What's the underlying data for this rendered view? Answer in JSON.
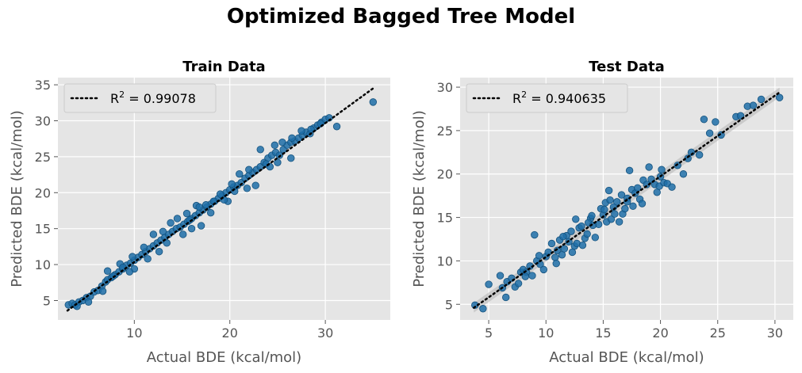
{
  "suptitle": "Optimized Bagged Tree Model",
  "colors": {
    "point": "#1f6fa8",
    "point_edge": "#14527e",
    "background": "#e5e5e5",
    "grid": "#ffffff",
    "fit_line": "#000000",
    "band": "#b0b0b0"
  },
  "chart_data": [
    {
      "type": "scatter",
      "title": "Train Data",
      "xlabel": "Actual BDE (kcal/mol)",
      "ylabel": "Predicted BDE (kcal/mol)",
      "xlim": [
        2.0,
        36.8
      ],
      "ylim": [
        2.3,
        36.0
      ],
      "xticks": [
        10,
        20,
        30
      ],
      "yticks": [
        5,
        10,
        15,
        20,
        25,
        30,
        35
      ],
      "grid": true,
      "legend": {
        "label_prefix": "R",
        "superscript": "2",
        "label_suffix": " = 0.99078",
        "placement": "top-left"
      },
      "fit_line": {
        "x": [
          3.0,
          35.0
        ],
        "y": [
          3.6,
          34.5
        ]
      },
      "scatter_note": "dense cloud along y≈x",
      "points": [
        [
          3.1,
          4.4
        ],
        [
          3.5,
          4.6
        ],
        [
          3.8,
          4.4
        ],
        [
          4.2,
          4.8
        ],
        [
          4.6,
          5.0
        ],
        [
          5.0,
          5.4
        ],
        [
          5.4,
          5.6
        ],
        [
          5.8,
          6.2
        ],
        [
          6.2,
          6.4
        ],
        [
          6.6,
          7.0
        ],
        [
          7.0,
          7.6
        ],
        [
          7.2,
          7.9
        ],
        [
          7.6,
          8.2
        ],
        [
          8.0,
          8.6
        ],
        [
          8.4,
          9.0
        ],
        [
          8.8,
          9.4
        ],
        [
          9.2,
          9.9
        ],
        [
          9.6,
          10.2
        ],
        [
          10.0,
          10.6
        ],
        [
          10.4,
          11.0
        ],
        [
          10.8,
          11.4
        ],
        [
          11.2,
          11.8
        ],
        [
          11.6,
          12.2
        ],
        [
          12.0,
          12.6
        ],
        [
          12.4,
          13.0
        ],
        [
          12.8,
          13.4
        ],
        [
          13.2,
          13.8
        ],
        [
          13.6,
          14.2
        ],
        [
          14.0,
          14.6
        ],
        [
          14.4,
          15.0
        ],
        [
          14.8,
          15.2
        ],
        [
          15.2,
          15.6
        ],
        [
          15.6,
          16.0
        ],
        [
          16.0,
          16.4
        ],
        [
          16.4,
          16.8
        ],
        [
          16.8,
          17.2
        ],
        [
          17.2,
          17.6
        ],
        [
          17.6,
          18.0
        ],
        [
          18.0,
          18.4
        ],
        [
          18.4,
          18.8
        ],
        [
          18.8,
          19.2
        ],
        [
          19.2,
          19.6
        ],
        [
          19.6,
          20.0
        ],
        [
          20.0,
          20.4
        ],
        [
          20.4,
          20.8
        ],
        [
          20.8,
          21.0
        ],
        [
          21.2,
          21.4
        ],
        [
          21.6,
          22.0
        ],
        [
          22.0,
          22.4
        ],
        [
          22.4,
          22.8
        ],
        [
          22.8,
          23.2
        ],
        [
          23.2,
          23.6
        ],
        [
          23.6,
          24.2
        ],
        [
          24.0,
          24.8
        ],
        [
          24.4,
          25.2
        ],
        [
          24.8,
          25.6
        ],
        [
          25.2,
          25.2
        ],
        [
          25.6,
          26.0
        ],
        [
          26.0,
          26.6
        ],
        [
          26.4,
          27.0
        ],
        [
          26.8,
          27.2
        ],
        [
          27.2,
          27.6
        ],
        [
          27.6,
          28.0
        ],
        [
          28.0,
          28.4
        ],
        [
          28.4,
          28.2
        ],
        [
          28.8,
          29.0
        ],
        [
          29.2,
          29.4
        ],
        [
          29.6,
          29.8
        ],
        [
          30.0,
          30.2
        ],
        [
          30.4,
          30.4
        ],
        [
          31.2,
          29.2
        ],
        [
          35.0,
          32.6
        ],
        [
          7.2,
          9.1
        ],
        [
          8.5,
          10.1
        ],
        [
          9.8,
          11.1
        ],
        [
          12.0,
          14.2
        ],
        [
          13.0,
          14.6
        ],
        [
          15.5,
          17.1
        ],
        [
          16.5,
          18.2
        ],
        [
          23.2,
          26.0
        ],
        [
          24.7,
          26.6
        ],
        [
          25.5,
          27.0
        ],
        [
          26.5,
          27.6
        ],
        [
          27.5,
          28.6
        ],
        [
          22.7,
          21.0
        ],
        [
          25.0,
          24.2
        ],
        [
          26.4,
          24.8
        ],
        [
          18.3,
          18.8
        ],
        [
          19.0,
          19.8
        ],
        [
          20.2,
          21.2
        ],
        [
          21.0,
          22.6
        ],
        [
          17.0,
          15.4
        ],
        [
          15.1,
          14.2
        ],
        [
          11.4,
          10.8
        ],
        [
          10.0,
          9.4
        ],
        [
          6.7,
          6.3
        ],
        [
          5.2,
          4.8
        ],
        [
          4.0,
          4.2
        ],
        [
          8.8,
          9.6
        ],
        [
          13.8,
          15.8
        ],
        [
          14.5,
          16.4
        ],
        [
          16.0,
          15.0
        ],
        [
          18.0,
          17.2
        ],
        [
          19.8,
          18.8
        ],
        [
          12.6,
          11.8
        ],
        [
          11.0,
          12.4
        ],
        [
          7.8,
          8.4
        ],
        [
          9.5,
          9.0
        ],
        [
          22.0,
          23.2
        ],
        [
          23.8,
          24.0
        ],
        [
          28.5,
          28.8
        ],
        [
          29.5,
          29.6
        ],
        [
          21.8,
          20.6
        ],
        [
          20.5,
          20.2
        ],
        [
          16.8,
          18.0
        ],
        [
          13.4,
          13.0
        ],
        [
          15.8,
          16.2
        ],
        [
          17.5,
          18.3
        ],
        [
          19.4,
          19.0
        ],
        [
          24.2,
          23.6
        ]
      ]
    },
    {
      "type": "scatter",
      "title": "Test Data",
      "xlabel": "Actual BDE (kcal/mol)",
      "ylabel": "Predicted BDE (kcal/mol)",
      "xlim": [
        2.5,
        31.6
      ],
      "ylim": [
        3.2,
        31.1
      ],
      "xticks": [
        5,
        10,
        15,
        20,
        25,
        30
      ],
      "yticks": [
        5,
        10,
        15,
        20,
        25,
        30
      ],
      "grid": true,
      "legend": {
        "label_prefix": "R",
        "superscript": "2",
        "label_suffix": " = 0.940635",
        "placement": "top-left"
      },
      "fit_line": {
        "x": [
          3.7,
          30.4
        ],
        "y": [
          4.6,
          29.4
        ]
      },
      "points": [
        [
          3.8,
          4.9
        ],
        [
          4.5,
          4.5
        ],
        [
          5.0,
          7.3
        ],
        [
          6.0,
          8.3
        ],
        [
          6.2,
          6.9
        ],
        [
          6.5,
          5.8
        ],
        [
          6.6,
          7.6
        ],
        [
          7.0,
          8.0
        ],
        [
          7.3,
          7.0
        ],
        [
          7.6,
          7.4
        ],
        [
          7.8,
          8.7
        ],
        [
          8.0,
          9.0
        ],
        [
          8.3,
          8.7
        ],
        [
          8.6,
          9.4
        ],
        [
          8.8,
          8.3
        ],
        [
          9.0,
          13.0
        ],
        [
          9.2,
          10.0
        ],
        [
          9.5,
          9.6
        ],
        [
          9.8,
          9.0
        ],
        [
          10.0,
          10.5
        ],
        [
          10.2,
          11.0
        ],
        [
          10.5,
          12.0
        ],
        [
          10.8,
          10.4
        ],
        [
          11.0,
          11.2
        ],
        [
          11.2,
          12.4
        ],
        [
          11.4,
          10.7
        ],
        [
          11.6,
          11.4
        ],
        [
          11.8,
          12.9
        ],
        [
          12.0,
          12.2
        ],
        [
          12.2,
          13.4
        ],
        [
          12.3,
          11.0
        ],
        [
          12.5,
          11.7
        ],
        [
          12.7,
          12.0
        ],
        [
          12.9,
          13.8
        ],
        [
          13.1,
          14.0
        ],
        [
          13.2,
          11.8
        ],
        [
          13.4,
          12.6
        ],
        [
          13.6,
          13.1
        ],
        [
          13.9,
          14.9
        ],
        [
          14.0,
          15.2
        ],
        [
          14.3,
          12.7
        ],
        [
          14.6,
          14.2
        ],
        [
          14.8,
          16.0
        ],
        [
          15.0,
          15.3
        ],
        [
          15.2,
          16.7
        ],
        [
          15.3,
          14.5
        ],
        [
          15.5,
          18.1
        ],
        [
          15.6,
          17.0
        ],
        [
          15.7,
          14.8
        ],
        [
          15.9,
          16.2
        ],
        [
          16.0,
          15.4
        ],
        [
          16.2,
          16.8
        ],
        [
          16.4,
          14.5
        ],
        [
          16.7,
          15.4
        ],
        [
          16.9,
          16.0
        ],
        [
          17.1,
          17.2
        ],
        [
          17.3,
          20.4
        ],
        [
          17.5,
          18.2
        ],
        [
          17.6,
          16.3
        ],
        [
          17.8,
          17.8
        ],
        [
          18.0,
          18.4
        ],
        [
          18.2,
          17.1
        ],
        [
          18.4,
          16.6
        ],
        [
          18.5,
          19.3
        ],
        [
          18.8,
          18.8
        ],
        [
          19.0,
          20.8
        ],
        [
          19.2,
          19.4
        ],
        [
          19.5,
          18.8
        ],
        [
          19.7,
          17.9
        ],
        [
          19.9,
          18.6
        ],
        [
          20.1,
          20.5
        ],
        [
          20.3,
          19.0
        ],
        [
          20.6,
          18.9
        ],
        [
          21.0,
          18.5
        ],
        [
          21.5,
          21.0
        ],
        [
          22.0,
          20.0
        ],
        [
          22.4,
          21.8
        ],
        [
          22.7,
          22.5
        ],
        [
          23.4,
          22.2
        ],
        [
          23.8,
          26.3
        ],
        [
          24.3,
          24.7
        ],
        [
          24.8,
          26.0
        ],
        [
          25.3,
          24.5
        ],
        [
          26.6,
          26.6
        ],
        [
          27.0,
          26.7
        ],
        [
          27.6,
          27.8
        ],
        [
          28.1,
          27.9
        ],
        [
          28.8,
          28.6
        ],
        [
          30.4,
          28.8
        ],
        [
          9.4,
          10.6
        ],
        [
          12.6,
          14.8
        ],
        [
          13.7,
          14.4
        ],
        [
          15.1,
          15.9
        ],
        [
          10.9,
          9.7
        ],
        [
          8.2,
          8.2
        ],
        [
          11.5,
          12.8
        ],
        [
          14.1,
          14.1
        ],
        [
          16.6,
          17.6
        ],
        [
          17.1,
          16.8
        ],
        [
          20.0,
          19.7
        ]
      ]
    }
  ]
}
